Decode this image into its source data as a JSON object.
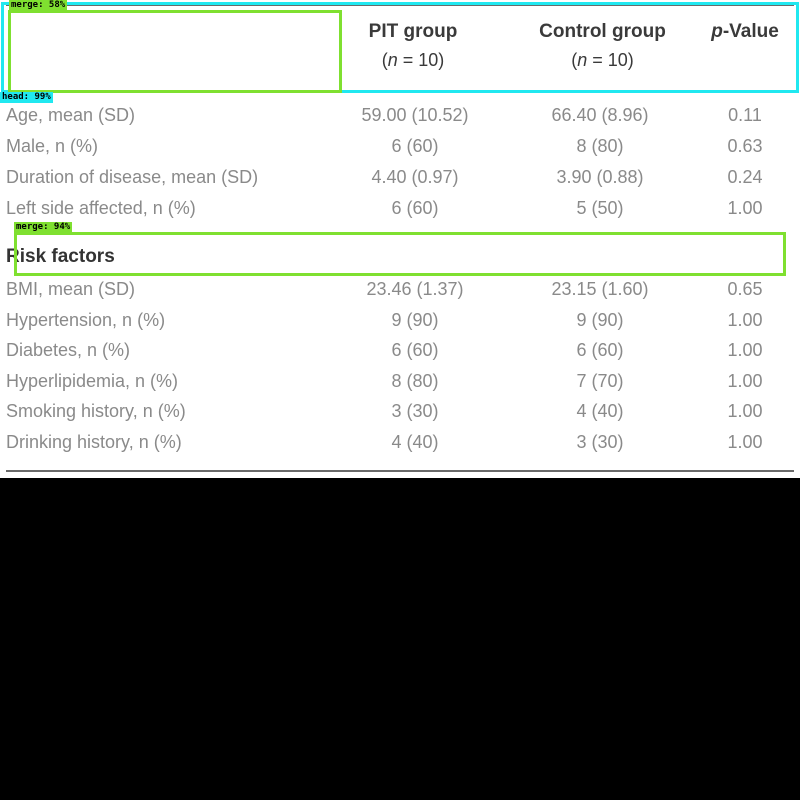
{
  "table": {
    "headers": {
      "pit": {
        "title": "PIT group",
        "n_prefix": "(",
        "n_var": "n",
        "n_suffix": " = 10)"
      },
      "control": {
        "title": "Control group",
        "n_prefix": "(",
        "n_var": "n",
        "n_suffix": " = 10)"
      },
      "pvalue": {
        "var": "p",
        "title": "-Value"
      }
    },
    "rows_top": [
      {
        "label": "Age, mean (SD)",
        "pit": "59.00 (10.52)",
        "control": "66.40 (8.96)",
        "p": "0.11"
      },
      {
        "label": "Male, n (%)",
        "pit": "6 (60)",
        "control": "8 (80)",
        "p": "0.63"
      },
      {
        "label": "Duration of disease, mean (SD)",
        "pit": "4.40 (0.97)",
        "control": "3.90 (0.88)",
        "p": "0.24"
      },
      {
        "label": "Left side affected, n (%)",
        "pit": "6 (60)",
        "control": "5 (50)",
        "p": "1.00"
      }
    ],
    "section_title": "Risk factors",
    "rows_risk": [
      {
        "label": "BMI, mean (SD)",
        "pit": "23.46 (1.37)",
        "control": "23.15 (1.60)",
        "p": "0.65"
      },
      {
        "label": "Hypertension, n (%)",
        "pit": "9 (90)",
        "control": "9 (90)",
        "p": "1.00"
      },
      {
        "label": "Diabetes, n (%)",
        "pit": "6 (60)",
        "control": "6 (60)",
        "p": "1.00"
      },
      {
        "label": "Hyperlipidemia, n (%)",
        "pit": "8 (80)",
        "control": "7 (70)",
        "p": "1.00"
      },
      {
        "label": "Smoking history, n (%)",
        "pit": "3 (30)",
        "control": "4 (40)",
        "p": "1.00"
      },
      {
        "label": "Drinking history, n (%)",
        "pit": "4 (40)",
        "control": "3 (30)",
        "p": "1.00"
      }
    ]
  },
  "annotations": [
    {
      "tag": "merge: 58%",
      "color": "#7fe030"
    },
    {
      "tag": "head: 99%",
      "color": "#20e8f0"
    },
    {
      "tag": "merge: 94%",
      "color": "#7fe030"
    }
  ]
}
